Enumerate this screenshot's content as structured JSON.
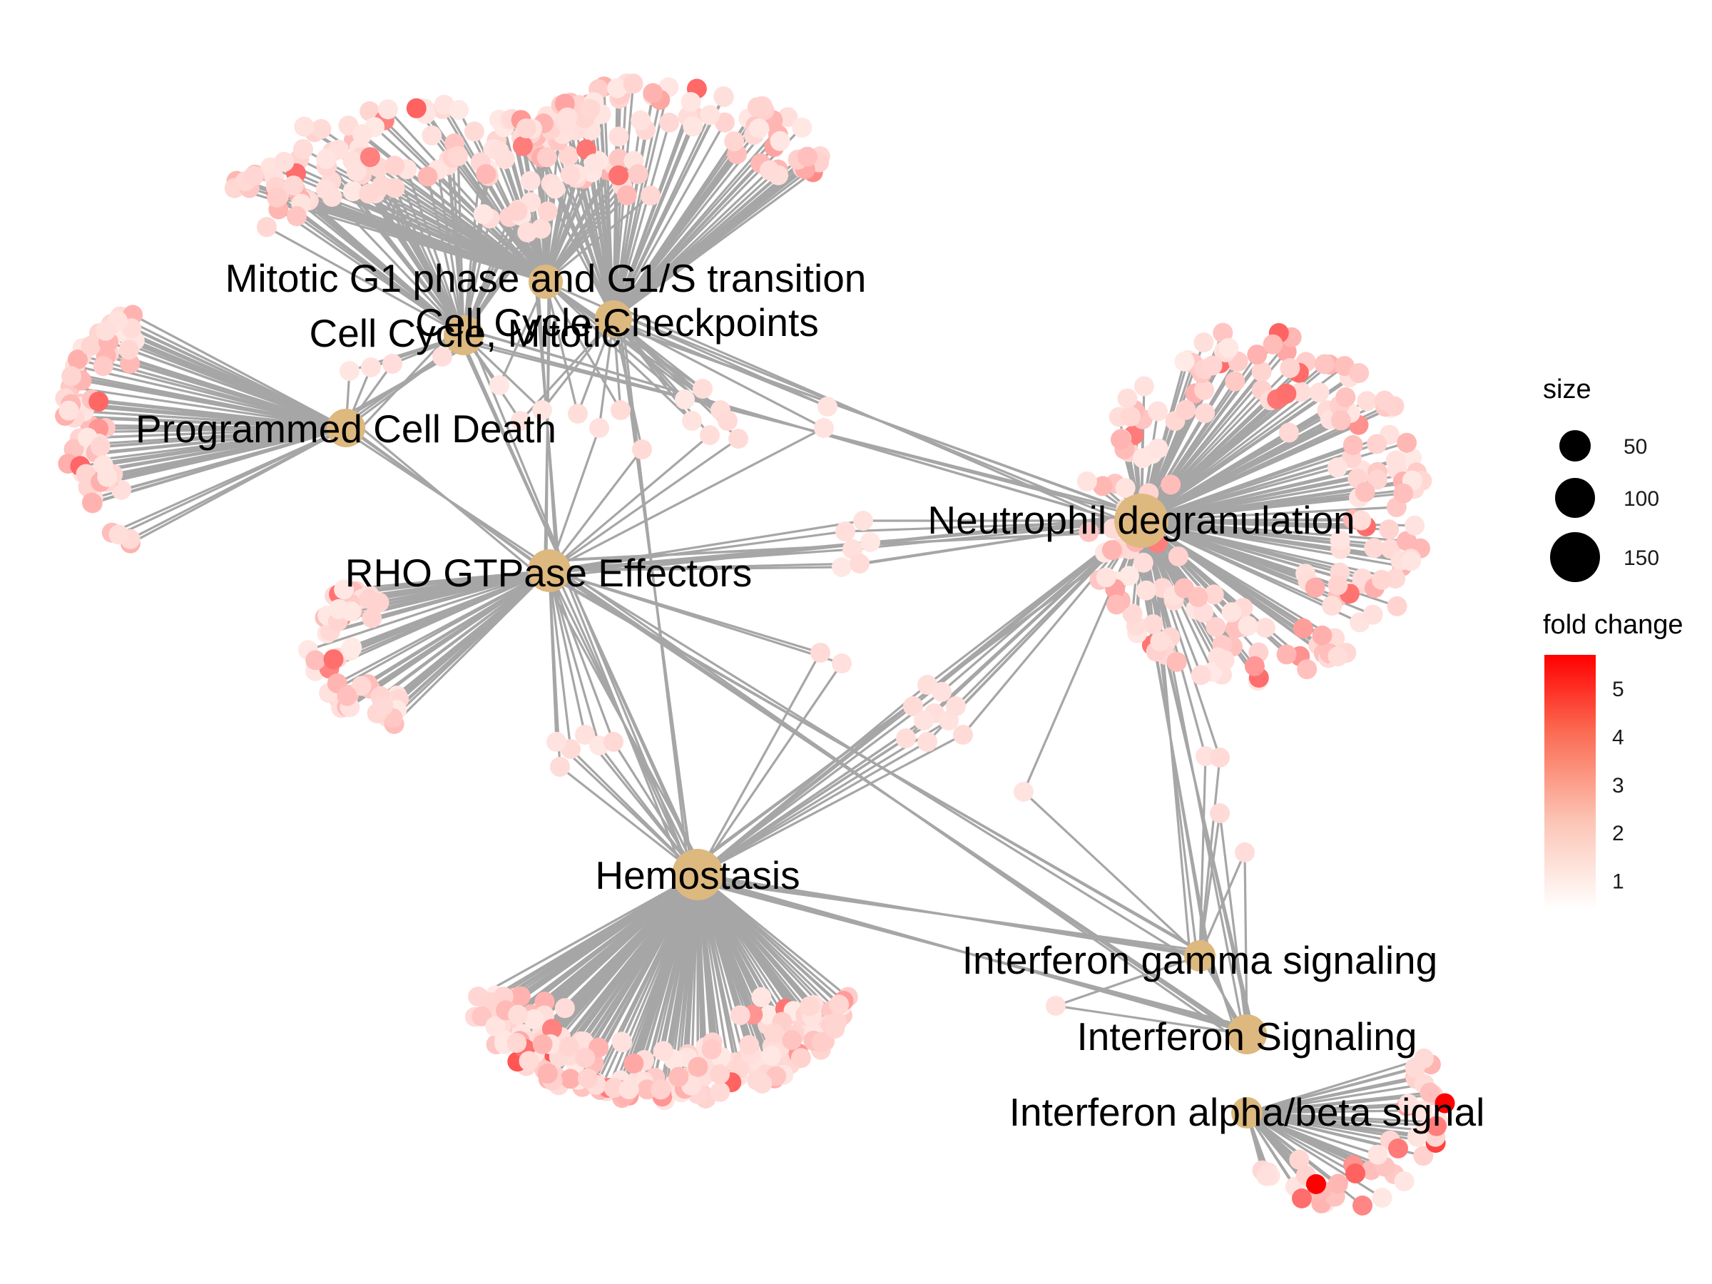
{
  "diagram": {
    "pathways": [
      {
        "id": "mitotic_g1",
        "label": "Mitotic G1 phase and G1/S transition",
        "size": 40
      },
      {
        "id": "cc_checkpoints",
        "label": "Cell Cycle Checkpoints",
        "size": 60
      },
      {
        "id": "cc_mitotic",
        "label": "Cell Cycle, Mitotic",
        "size": 120
      },
      {
        "id": "pcd",
        "label": "Programmed Cell Death",
        "size": 55
      },
      {
        "id": "rho",
        "label": "RHO GTPase Effectors",
        "size": 60
      },
      {
        "id": "neutrophil",
        "label": "Neutrophil degranulation",
        "size": 165
      },
      {
        "id": "hemostasis",
        "label": "Hemostasis",
        "size": 150
      },
      {
        "id": "ifn_gamma",
        "label": "Interferon gamma signaling",
        "size": 35
      },
      {
        "id": "ifn_signaling",
        "label": "Interferon Signaling",
        "size": 70
      },
      {
        "id": "ifn_ab",
        "label": "Interferon alpha/beta signal",
        "size": 35
      }
    ],
    "hub_color": "#ddb97f",
    "edge_color": "#a6a6a6",
    "low_color": "#fff4f0",
    "high_color": "#ff0000"
  },
  "legend": {
    "size_title": "size",
    "size_items": [
      {
        "label": "50",
        "value": 50
      },
      {
        "label": "100",
        "value": 100
      },
      {
        "label": "150",
        "value": 150
      }
    ],
    "color_title": "fold change",
    "color_ticks": [
      "1",
      "2",
      "3",
      "4",
      "5"
    ],
    "color_min": 0.4,
    "color_max": 5.7
  }
}
